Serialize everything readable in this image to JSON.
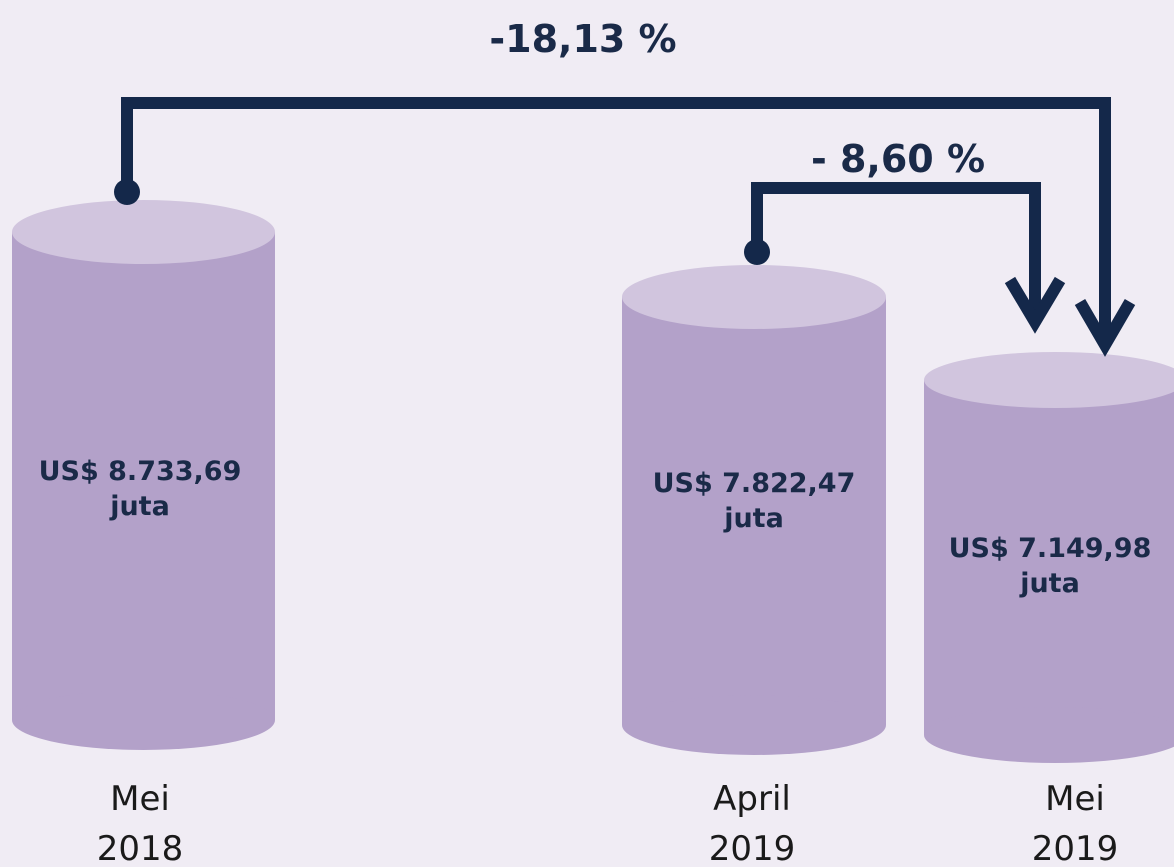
{
  "changes": {
    "long": "-18,13 %",
    "short": "- 8,60 %"
  },
  "items": [
    {
      "amount": "US$ 8.733,69",
      "unit": "juta",
      "month": "Mei",
      "year": "2018"
    },
    {
      "amount": "US$ 7.822,47",
      "unit": "juta",
      "month": "April",
      "year": "2019"
    },
    {
      "amount": "US$ 7.149,98",
      "unit": "juta",
      "month": "Mei",
      "year": "2019"
    }
  ]
}
